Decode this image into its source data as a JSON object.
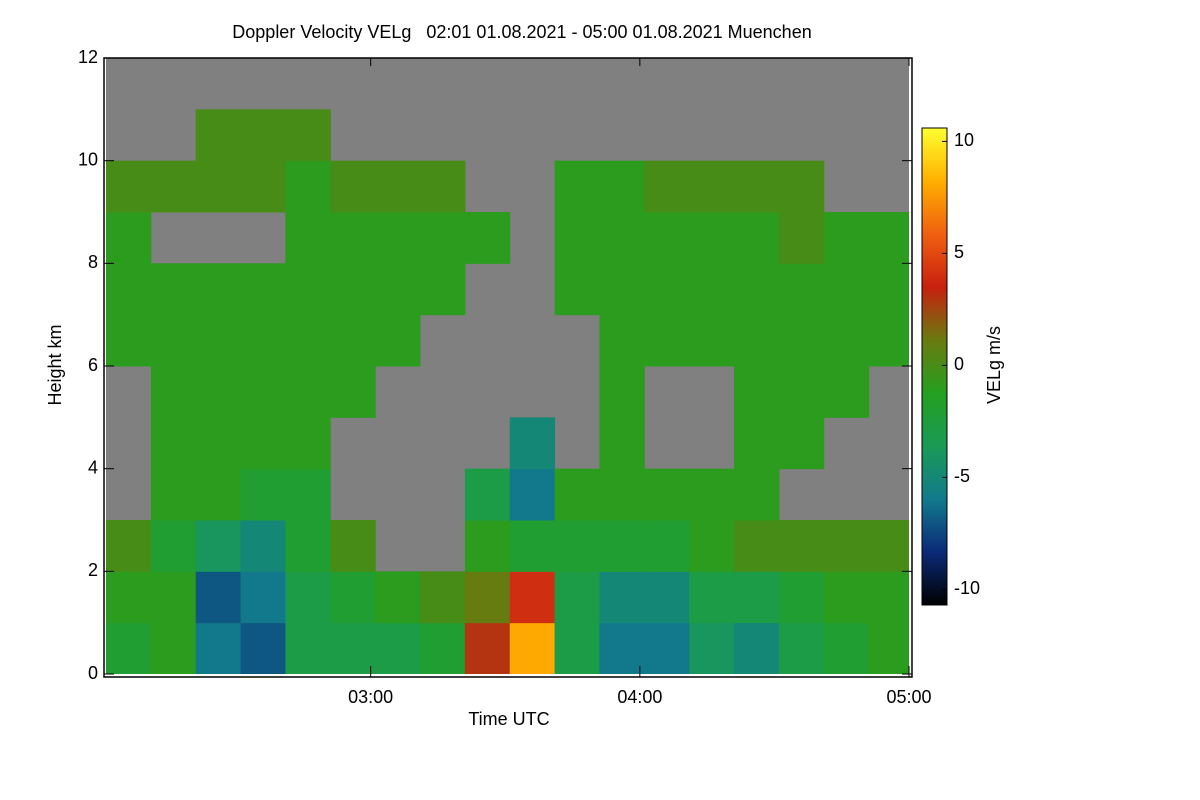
{
  "chart_data": {
    "type": "heatmap",
    "title": "Doppler Velocity VELg   02:01 01.08.2021 - 05:00 01.08.2021 Muenchen",
    "x_label": "Time UTC",
    "y_label": "Height km",
    "colorbar_label": "VELg m/s",
    "x": [
      126,
      136,
      146,
      156,
      166,
      176,
      186,
      196,
      206,
      216,
      226,
      236,
      246,
      256,
      266,
      276,
      286,
      296
    ],
    "y": [
      0.5,
      1.5,
      2.5,
      3.5,
      4.5,
      5.5,
      6.5,
      7.5,
      8.5,
      9.5,
      10.5,
      11.5
    ],
    "z": [
      [
        -2,
        -1,
        0,
        null,
        null,
        null,
        -1,
        -1,
        -1,
        0,
        null,
        null
      ],
      [
        -1,
        -1,
        -2,
        -1,
        -1,
        -1,
        -1,
        -1,
        null,
        0,
        null,
        null
      ],
      [
        -6,
        -7,
        -4,
        -1,
        -1,
        -1,
        -1,
        -1,
        null,
        0,
        0,
        null
      ],
      [
        -7,
        -6,
        -5,
        -2,
        -1,
        -1,
        -1,
        -1,
        null,
        0,
        0,
        null
      ],
      [
        -3,
        -3,
        -2,
        -2,
        -1,
        -1,
        -1,
        -1,
        -1,
        -1,
        0,
        null
      ],
      [
        -3,
        -2,
        0,
        null,
        null,
        -1,
        -1,
        -1,
        -1,
        0,
        null,
        null
      ],
      [
        -3,
        -1,
        null,
        null,
        null,
        null,
        -1,
        -1,
        -1,
        0,
        null,
        null
      ],
      [
        -2,
        0,
        null,
        null,
        null,
        null,
        null,
        -1,
        -1,
        0,
        null,
        null
      ],
      [
        3,
        1,
        -1,
        -3,
        null,
        null,
        null,
        null,
        -1,
        null,
        null,
        null
      ],
      [
        8,
        4,
        -2,
        -6,
        -5,
        null,
        null,
        null,
        null,
        null,
        null,
        null
      ],
      [
        -3,
        -3,
        -2,
        -1,
        null,
        null,
        null,
        -1,
        -1,
        -1,
        null,
        null
      ],
      [
        -6,
        -5,
        -2,
        -1,
        -1,
        -1,
        -1,
        -1,
        -1,
        -1,
        null,
        null
      ],
      [
        -6,
        -5,
        -2,
        -1,
        null,
        null,
        -1,
        -1,
        -1,
        0,
        null,
        null
      ],
      [
        -4,
        -3,
        -1,
        -1,
        null,
        null,
        -1,
        -1,
        -1,
        0,
        null,
        null
      ],
      [
        -5,
        -3,
        0,
        -1,
        -1,
        -1,
        -1,
        -1,
        -1,
        0,
        null,
        null
      ],
      [
        -3,
        -2,
        0,
        null,
        -1,
        -1,
        -1,
        -1,
        0,
        0,
        null,
        null
      ],
      [
        -2,
        -1,
        0,
        null,
        null,
        -1,
        -1,
        -1,
        -1,
        null,
        null,
        null
      ],
      [
        -1,
        -1,
        0,
        null,
        null,
        null,
        -1,
        -1,
        -1,
        null,
        null,
        null
      ]
    ],
    "xlim": [
      121,
      300
    ],
    "xticks": [
      {
        "value": 180,
        "label": "03:00"
      },
      {
        "value": 240,
        "label": "04:00"
      },
      {
        "value": 300,
        "label": "05:00"
      }
    ],
    "ylim": [
      0,
      12
    ],
    "yticks": [
      0,
      2,
      4,
      6,
      8,
      10,
      12
    ],
    "zlim": [
      -10.7,
      10.6
    ],
    "zticks": [
      -10,
      -5,
      0,
      5,
      10
    ],
    "colormap": [
      "#000000",
      "#0b2a78",
      "#127a8c",
      "#1a9a55",
      "#24a020",
      "#6a7a10",
      "#c82010",
      "#f06010",
      "#ffb000",
      "#ffff30"
    ],
    "missing_color": "#808080"
  }
}
